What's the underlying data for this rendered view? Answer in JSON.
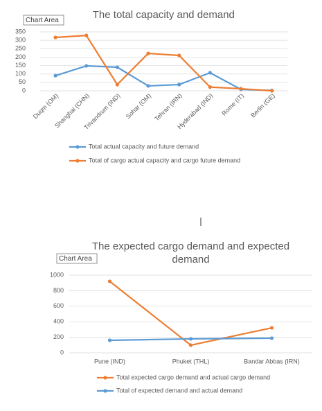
{
  "chart_data": [
    {
      "type": "line",
      "title": "The total capacity and demand",
      "tooltip": "Chart Area",
      "categories": [
        "Duqm (OM)",
        "Shanghai (CHN)",
        "Trivandrum (IND)",
        "Sohar (OM)",
        "Tehran (IRN)",
        "Hyderabad (IND)",
        "Rome (IT)",
        "Berlin (GE)"
      ],
      "series": [
        {
          "name": "Total actual capacity and future demand",
          "color": "#5b9bd5",
          "values": [
            90,
            148,
            140,
            29,
            37,
            107,
            8,
            2
          ]
        },
        {
          "name": "Total of cargo actual capacity and cargo future demand",
          "color": "#ed7d31",
          "values": [
            317,
            329,
            37,
            222,
            210,
            22,
            12,
            0
          ]
        }
      ],
      "ylim": [
        0,
        350
      ],
      "yticks": [
        0,
        50,
        100,
        150,
        200,
        250,
        300,
        350
      ],
      "grid": true,
      "legend": "bottom"
    },
    {
      "type": "line",
      "title": "The expected cargo demand and expected demand",
      "tooltip": "Chart Area",
      "categories": [
        "Pune (IND)",
        "Phuket (THL)",
        "Bandar Abbas (IRN)"
      ],
      "series": [
        {
          "name": "Total expected cargo demand and actual cargo demand",
          "color": "#ed7d31",
          "values": [
            920,
            98,
            321
          ]
        },
        {
          "name": "Total of expected demand and actual demand",
          "color": "#5b9bd5",
          "values": [
            161,
            179,
            188
          ]
        }
      ],
      "ylim": [
        0,
        1000
      ],
      "yticks": [
        0,
        200,
        400,
        600,
        800,
        1000
      ],
      "grid": true,
      "legend": "bottom"
    }
  ]
}
